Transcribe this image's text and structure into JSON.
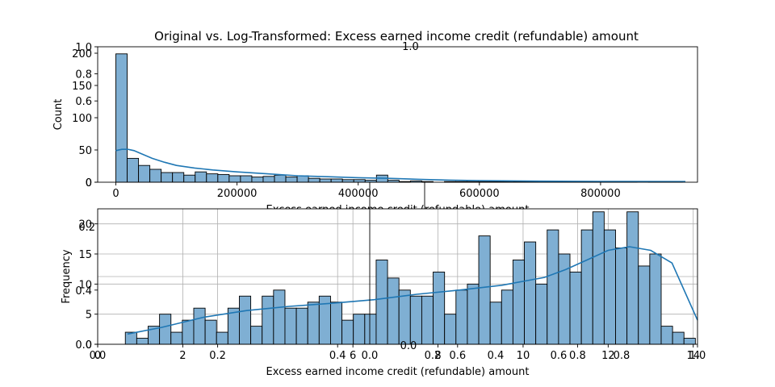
{
  "figure": {
    "title": "Original vs. Log-Transformed: Excess earned income credit (refundable) amount"
  },
  "chart_data": [
    {
      "type": "bar",
      "subtype": "histogram-with-kde",
      "title": "Original vs. Log-Transformed: Excess earned income credit (refundable) amount",
      "xlabel": "Excess earned income credit (refundable) amount",
      "ylabel": "Count",
      "xlim": [
        -30000,
        960000
      ],
      "ylim": [
        0,
        210
      ],
      "xticks": [
        0,
        200000,
        400000,
        600000,
        800000
      ],
      "xtick_labels": [
        "0",
        "200000",
        "400000",
        "600000",
        "800000"
      ],
      "yticks": [
        0,
        50,
        100,
        150,
        200
      ],
      "ytick_labels": [
        "0",
        "50",
        "100",
        "150",
        "200"
      ],
      "bin_start": 0,
      "bin_width": 18700,
      "counts": [
        199,
        37,
        26,
        20,
        15,
        15,
        11,
        16,
        13,
        12,
        10,
        10,
        8,
        9,
        11,
        8,
        10,
        6,
        5,
        5,
        4,
        4,
        3,
        11,
        3,
        1,
        2,
        1,
        0,
        1,
        1,
        1,
        1,
        1,
        1,
        1,
        1,
        1,
        1,
        1,
        1,
        1,
        1,
        1,
        1,
        1,
        0,
        1,
        1,
        1
      ],
      "bar_color": "#7fafd3",
      "kde": {
        "color": "#1f77b4",
        "x": [
          0,
          10000,
          20000,
          30000,
          40000,
          60000,
          80000,
          100000,
          130000,
          160000,
          200000,
          250000,
          300000,
          350000,
          400000,
          450000,
          500000,
          550000,
          600000,
          700000,
          800000,
          940000
        ],
        "y": [
          49,
          51,
          51,
          49,
          45,
          37,
          31,
          26,
          22,
          19,
          16,
          13,
          10,
          8.5,
          7,
          6,
          4.5,
          3.3,
          2.5,
          1.6,
          1.2,
          1
        ]
      },
      "overlay_axis": {
        "ylim": [
          0,
          1
        ],
        "yticks": [
          0,
          0.6,
          0.8,
          1.0
        ],
        "ytick_labels": [
          "0",
          "0.6",
          "0.8",
          "1.0"
        ],
        "top_label": "1.0"
      },
      "grid": false
    },
    {
      "type": "bar",
      "subtype": "histogram-with-kde",
      "xlabel": "Excess earned income credit (refundable) amount",
      "ylabel": "Frequency",
      "xlim": [
        0,
        14.1
      ],
      "ylim": [
        0,
        22.5
      ],
      "xticks": [
        0,
        2,
        6,
        8,
        10,
        12,
        14
      ],
      "xtick_labels": [
        "0",
        "2",
        "6",
        "8",
        "10",
        "12",
        "14"
      ],
      "yticks": [
        0,
        5,
        10,
        15,
        20
      ],
      "ytick_labels": [
        "0",
        "5",
        "10",
        "15",
        "20"
      ],
      "bin_start": 0.65,
      "bin_width": 0.268,
      "counts": [
        2,
        1,
        3,
        5,
        2,
        4,
        6,
        4,
        2,
        6,
        8,
        3,
        8,
        9,
        6,
        6,
        7,
        8,
        7,
        4,
        5,
        5,
        14,
        11,
        9,
        8,
        8,
        12,
        5,
        9,
        10,
        18,
        7,
        9,
        14,
        17,
        10,
        19,
        15,
        12,
        19,
        22,
        19,
        16,
        22,
        13,
        15,
        3,
        2,
        1
      ],
      "bar_color": "#7fafd3",
      "kde": {
        "color": "#1f77b4",
        "x": [
          0.7,
          1.5,
          2.5,
          3.5,
          4.5,
          5.5,
          6.5,
          7.5,
          8.5,
          9.5,
          10.5,
          11.0,
          11.5,
          12.0,
          12.5,
          13.0,
          13.5,
          14.1
        ],
        "y": [
          1.7,
          2.8,
          4.5,
          5.6,
          6.3,
          6.8,
          7.4,
          8.3,
          9.0,
          9.8,
          11.1,
          12.4,
          14.0,
          15.6,
          16.2,
          15.6,
          13.5,
          4.0
        ]
      },
      "overlay_axis": {
        "xlim": [
          0,
          1
        ],
        "ylim": [
          0,
          1
        ],
        "xticks": [
          0.0,
          0.2,
          0.4,
          0.6,
          0.8,
          1.0
        ],
        "xtick_labels": [
          "0.0",
          "0.2",
          "0.4",
          "0.6",
          "0.8",
          "1.0"
        ],
        "yticks": [
          0.0,
          0.4
        ],
        "ytick_labels": [
          "0.0",
          "0.4"
        ]
      },
      "center_overlay": {
        "xticks": [
          0.0,
          0.2,
          0.4,
          0.6,
          0.8
        ],
        "xtick_labels": [
          "0.0",
          "0.2",
          "0.4",
          "0.6",
          "0.8"
        ],
        "ytick_labels": [
          "0.0",
          "0.2"
        ]
      },
      "grid": true
    }
  ]
}
